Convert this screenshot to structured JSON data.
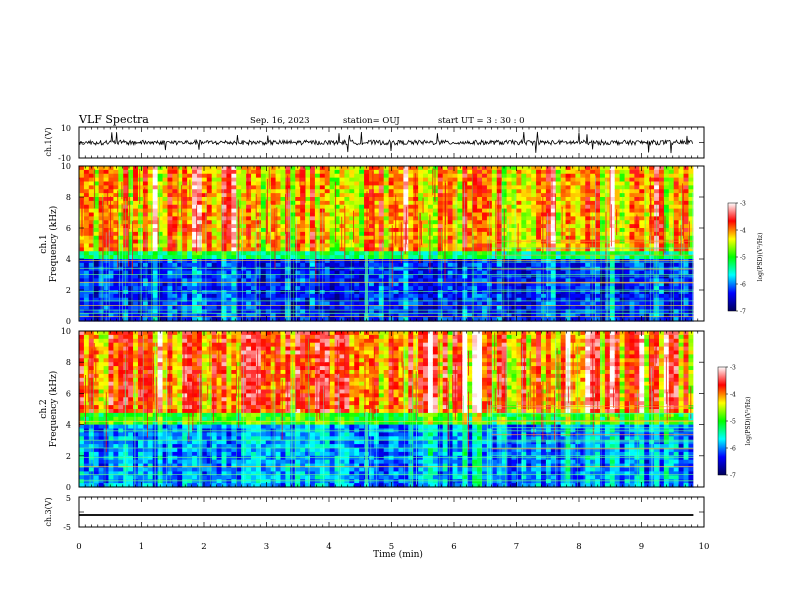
{
  "header": {
    "title": "VLF Spectra",
    "date": "Sep. 16, 2023",
    "station": "station= OUJ",
    "start": "start  UT =   3  : 30 : 0"
  },
  "colorbar": {
    "label": "log(PSD)(V²/Hz)",
    "ticks": [
      "-3",
      "-4",
      "-5",
      "-6",
      "-7"
    ]
  },
  "chart_data": [
    {
      "type": "line",
      "title": "",
      "ylabel": "ch.1(V)",
      "xlim": [
        0,
        10
      ],
      "ylim": [
        -10,
        10
      ],
      "yticks": [
        "10",
        "-10"
      ],
      "series": [
        {
          "baseline": 0,
          "noise_amplitude": 1.5,
          "spike_amplitude": 7
        }
      ]
    },
    {
      "type": "heatmap",
      "ylabel": "ch.1\nFrequency  (kHz)",
      "xlim": [
        0,
        10
      ],
      "ylim": [
        0,
        10
      ],
      "yticks": [
        "0",
        "2",
        "4",
        "6",
        "8",
        "10"
      ],
      "color_scale": {
        "min": -7,
        "max": -3,
        "label": "log(PSD)(V²/Hz)",
        "colors": [
          "#00005a",
          "#0000ff",
          "#00ffff",
          "#00ff00",
          "#ffff00",
          "#ff0000",
          "#ffffff"
        ]
      },
      "summary": {
        "high_band_kHz": [
          5,
          10
        ],
        "high_band_level": -4.2,
        "low_band_kHz": [
          0,
          4
        ],
        "low_band_level": -6.3,
        "transition_kHz": 4.5,
        "narrowband_lines_kHz": [
          0.3,
          0.5,
          0.7,
          1.0,
          1.3,
          1.9,
          2.5,
          3.0,
          3.4,
          3.9
        ],
        "extra_lines_after_min": 6.6,
        "vertical_event_min": 4.6
      }
    },
    {
      "type": "heatmap",
      "ylabel": "ch.2\nFrequency  (kHz)",
      "xlim": [
        0,
        10
      ],
      "ylim": [
        0,
        10
      ],
      "yticks": [
        "0",
        "2",
        "4",
        "6",
        "8",
        "10"
      ],
      "color_scale": {
        "min": -7,
        "max": -3,
        "label": "log(PSD)(V²/Hz)",
        "colors": [
          "#00005a",
          "#0000ff",
          "#00ffff",
          "#00ff00",
          "#ffff00",
          "#ff0000",
          "#ffffff"
        ]
      },
      "summary": {
        "high_band_kHz": [
          5,
          10
        ],
        "high_band_level": -4.0,
        "low_band_kHz": [
          0,
          4
        ],
        "low_band_level": -6.0,
        "transition_kHz": 4.8,
        "narrowband_lines_kHz": [
          0.4,
          0.8,
          1.3,
          1.9,
          2.5,
          3.0,
          3.6,
          4.2
        ],
        "extra_lines_after_min": 6.6,
        "vertical_event_min": 4.6
      }
    },
    {
      "type": "line",
      "ylabel": "ch.3(V)",
      "xlim": [
        0,
        10
      ],
      "ylim": [
        -5,
        5
      ],
      "yticks": [
        "5",
        "-5"
      ],
      "series": [
        {
          "baseline": -1,
          "noise_amplitude": 0.3
        }
      ]
    }
  ],
  "xaxis": {
    "label": "Time  (min)",
    "ticks": [
      "0",
      "1",
      "2",
      "3",
      "4",
      "5",
      "6",
      "7",
      "8",
      "9",
      "10"
    ],
    "xlim": [
      0,
      10
    ],
    "data_end": 9.83
  }
}
